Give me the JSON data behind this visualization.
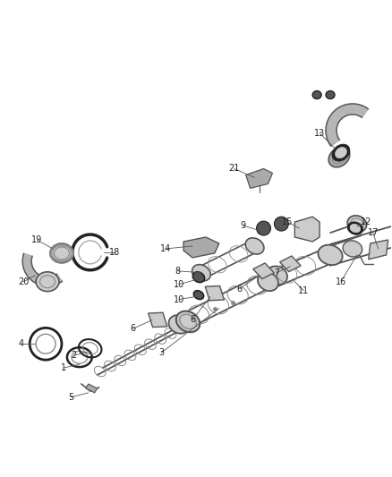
{
  "bg_color": "#ffffff",
  "figsize": [
    4.38,
    5.33
  ],
  "dpi": 100,
  "gray1": "#222222",
  "gray2": "#555555",
  "gray3": "#888888",
  "gray4": "#aaaaaa",
  "gray5": "#cccccc"
}
